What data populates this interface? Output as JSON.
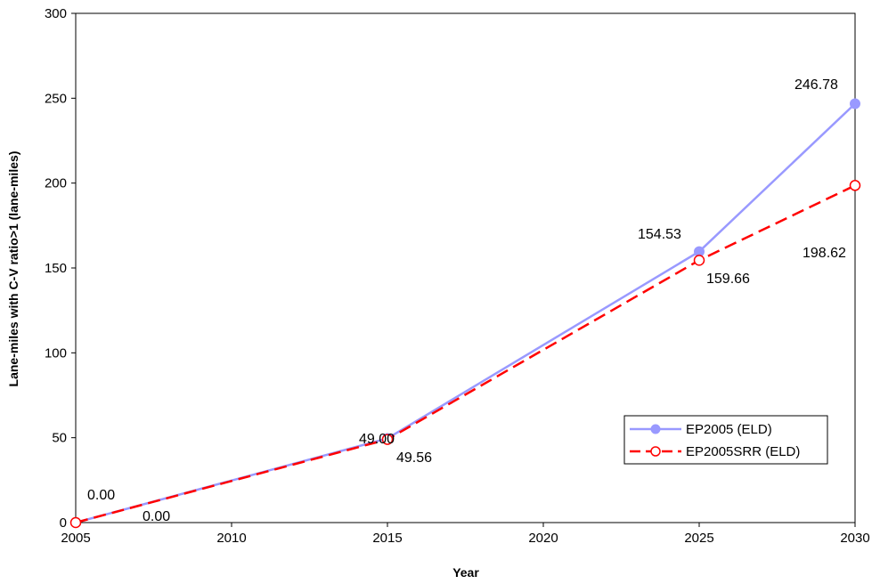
{
  "chart_data": {
    "type": "line",
    "title": "",
    "xlabel": "Year",
    "ylabel": "Lane-miles with C-V ratio>1 (lane-miles)",
    "x": [
      2005,
      2015,
      2025,
      2030
    ],
    "xlim": [
      2005,
      2030
    ],
    "ylim": [
      0,
      300
    ],
    "xticks": [
      "2005",
      "2010",
      "2015",
      "2020",
      "2025",
      "2030"
    ],
    "yticks": [
      "0",
      "50",
      "100",
      "150",
      "200",
      "250",
      "300"
    ],
    "grid": false,
    "legend_position": "right",
    "series": [
      {
        "name": "EP2005 (ELD)",
        "values": [
          0,
          49.56,
          159.66,
          246.78
        ],
        "color": "#9999ff",
        "line_style": "solid",
        "marker": "filled-circle"
      },
      {
        "name": "EP2005SRR (ELD)",
        "values": [
          0,
          49.0,
          154.53,
          198.62
        ],
        "color": "#ff0000",
        "line_style": "dashed",
        "marker": "open-circle"
      }
    ],
    "annotations": [
      {
        "text": "0.00"
      },
      {
        "text": "0.00"
      },
      {
        "text": "49.00"
      },
      {
        "text": "49.56"
      },
      {
        "text": "154.53"
      },
      {
        "text": "159.66"
      },
      {
        "text": "246.78"
      },
      {
        "text": "198.62"
      }
    ]
  }
}
